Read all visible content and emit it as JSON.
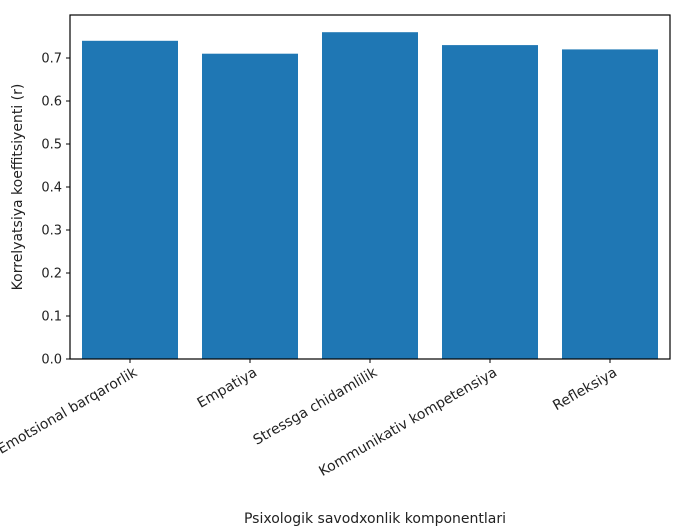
{
  "chart_data": {
    "type": "bar",
    "title": "",
    "xlabel": "Psixologik savodxonlik komponentlari",
    "ylabel": "Korrelyatsiya koeffitsiyenti (r)",
    "categories": [
      "Emotsional barqarorlik",
      "Empatiya",
      "Stressga chidamlilik",
      "Kommunikativ kompetensiya",
      "Refleksiya"
    ],
    "values": [
      0.74,
      0.71,
      0.76,
      0.73,
      0.72
    ],
    "ylim": [
      0,
      0.8
    ],
    "yticks": [
      "0.0",
      "0.1",
      "0.2",
      "0.3",
      "0.4",
      "0.5",
      "0.6",
      "0.7"
    ],
    "grid": false,
    "legend": "none",
    "bar_color": "#1f77b4"
  }
}
